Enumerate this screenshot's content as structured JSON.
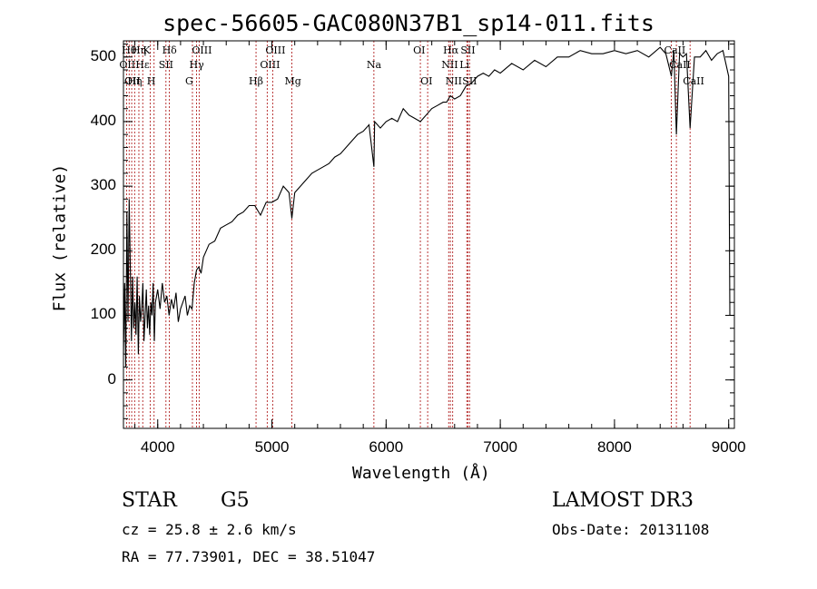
{
  "chart_data": {
    "type": "line",
    "title": "spec-56605-GAC080N37B1_sp14-011.fits",
    "xlabel": "Wavelength (Å)",
    "ylabel": "Flux (relative)",
    "xlim": [
      3700,
      9050
    ],
    "ylim": [
      -75,
      525
    ],
    "xticks": [
      4000,
      5000,
      6000,
      7000,
      8000,
      9000
    ],
    "yticks": [
      0,
      100,
      200,
      300,
      400,
      500
    ],
    "series": [
      {
        "x": [
          3700,
          3710,
          3720,
          3730,
          3740,
          3750,
          3760,
          3770,
          3780,
          3790,
          3800,
          3810,
          3820,
          3830,
          3840,
          3850,
          3860,
          3870,
          3880,
          3890,
          3900,
          3910,
          3920,
          3930,
          3940,
          3950,
          3960,
          3970,
          3980,
          3990,
          4000,
          4020,
          4040,
          4060,
          4080,
          4100,
          4120,
          4140,
          4160,
          4180,
          4200,
          4220,
          4240,
          4260,
          4280,
          4300,
          4320,
          4340,
          4360,
          4380,
          4400,
          4450,
          4500,
          4550,
          4600,
          4650,
          4700,
          4750,
          4800,
          4850,
          4900,
          4950,
          5000,
          5050,
          5100,
          5150,
          5175,
          5200,
          5250,
          5300,
          5350,
          5400,
          5450,
          5500,
          5550,
          5600,
          5650,
          5700,
          5750,
          5800,
          5850,
          5893,
          5900,
          5950,
          6000,
          6050,
          6100,
          6150,
          6200,
          6250,
          6300,
          6350,
          6400,
          6450,
          6500,
          6530,
          6563,
          6600,
          6650,
          6700,
          6750,
          6800,
          6850,
          6900,
          6950,
          7000,
          7100,
          7200,
          7300,
          7400,
          7500,
          7600,
          7700,
          7800,
          7900,
          8000,
          8100,
          8200,
          8300,
          8400,
          8450,
          8498,
          8520,
          8542,
          8570,
          8600,
          8630,
          8662,
          8700,
          8750,
          8800,
          8850,
          8900,
          8950,
          9000,
          9010
        ],
        "y": [
          40,
          150,
          20,
          260,
          90,
          280,
          180,
          60,
          160,
          80,
          120,
          70,
          160,
          40,
          130,
          90,
          110,
          150,
          60,
          100,
          140,
          80,
          115,
          70,
          120,
          100,
          150,
          60,
          120,
          130,
          140,
          110,
          150,
          120,
          130,
          100,
          125,
          110,
          135,
          90,
          110,
          120,
          130,
          100,
          115,
          110,
          150,
          170,
          175,
          165,
          190,
          210,
          215,
          235,
          240,
          245,
          255,
          260,
          270,
          270,
          255,
          275,
          275,
          280,
          300,
          290,
          250,
          290,
          300,
          310,
          320,
          325,
          330,
          335,
          345,
          350,
          360,
          370,
          380,
          385,
          395,
          330,
          400,
          390,
          400,
          405,
          400,
          420,
          410,
          405,
          400,
          410,
          420,
          425,
          430,
          430,
          440,
          435,
          440,
          455,
          460,
          470,
          475,
          470,
          480,
          475,
          490,
          480,
          495,
          485,
          500,
          500,
          510,
          505,
          505,
          510,
          505,
          510,
          500,
          515,
          505,
          470,
          510,
          380,
          505,
          500,
          505,
          390,
          500,
          500,
          510,
          495,
          505,
          510,
          470,
          100
        ]
      }
    ],
    "line_markers": [
      {
        "w": 3727,
        "name": "OII",
        "row": 1
      },
      {
        "w": 3750,
        "name": "Hθ",
        "row": 0
      },
      {
        "w": 3772,
        "name": "OII",
        "row": 2
      },
      {
        "w": 3798,
        "name": "Hη",
        "row": 2
      },
      {
        "w": 3835,
        "name": "Hη",
        "row": 0
      },
      {
        "w": 3869,
        "name": "Hε",
        "row": 1
      },
      {
        "w": 3934,
        "name": "K",
        "row": 0
      },
      {
        "w": 3968,
        "name": "H",
        "row": 2
      },
      {
        "w": 4072,
        "name": "SII",
        "row": 1
      },
      {
        "w": 4102,
        "name": "Hδ",
        "row": 0
      },
      {
        "w": 4304,
        "name": "G",
        "row": 2
      },
      {
        "w": 4340,
        "name": "Hγ",
        "row": 1
      },
      {
        "w": 4363,
        "name": "OIII",
        "row": 0
      },
      {
        "w": 4861,
        "name": "Hβ",
        "row": 2
      },
      {
        "w": 4959,
        "name": "OIII",
        "row": 1
      },
      {
        "w": 5007,
        "name": "OIII",
        "row": 0
      },
      {
        "w": 5175,
        "name": "Mg",
        "row": 2
      },
      {
        "w": 5893,
        "name": "Na",
        "row": 1
      },
      {
        "w": 6300,
        "name": "OI",
        "row": 0
      },
      {
        "w": 6364,
        "name": "OI",
        "row": 2
      },
      {
        "w": 6548,
        "name": "NII",
        "row": 1
      },
      {
        "w": 6563,
        "name": "Hα",
        "row": 0
      },
      {
        "w": 6583,
        "name": "NII",
        "row": 2
      },
      {
        "w": 6707,
        "name": "Li",
        "row": 1
      },
      {
        "w": 6716,
        "name": "SII",
        "row": 0
      },
      {
        "w": 6731,
        "name": "SII",
        "row": 2
      },
      {
        "w": 8498,
        "name": "CaII",
        "row": 0
      },
      {
        "w": 8542,
        "name": "CaII",
        "row": 1
      },
      {
        "w": 8662,
        "name": "CaII",
        "row": 2
      }
    ]
  },
  "info": {
    "object_type": "STAR",
    "subclass": "G5",
    "survey": "LAMOST DR3",
    "redshift": "cz = 25.8 ± 2.6 km/s",
    "obs_date": "Obs-Date: 20131108",
    "coords": "RA =  77.73901, DEC =  38.51047"
  },
  "colors": {
    "spectrum": "#000000",
    "line_marker": "#b22222",
    "axes": "#000000"
  }
}
